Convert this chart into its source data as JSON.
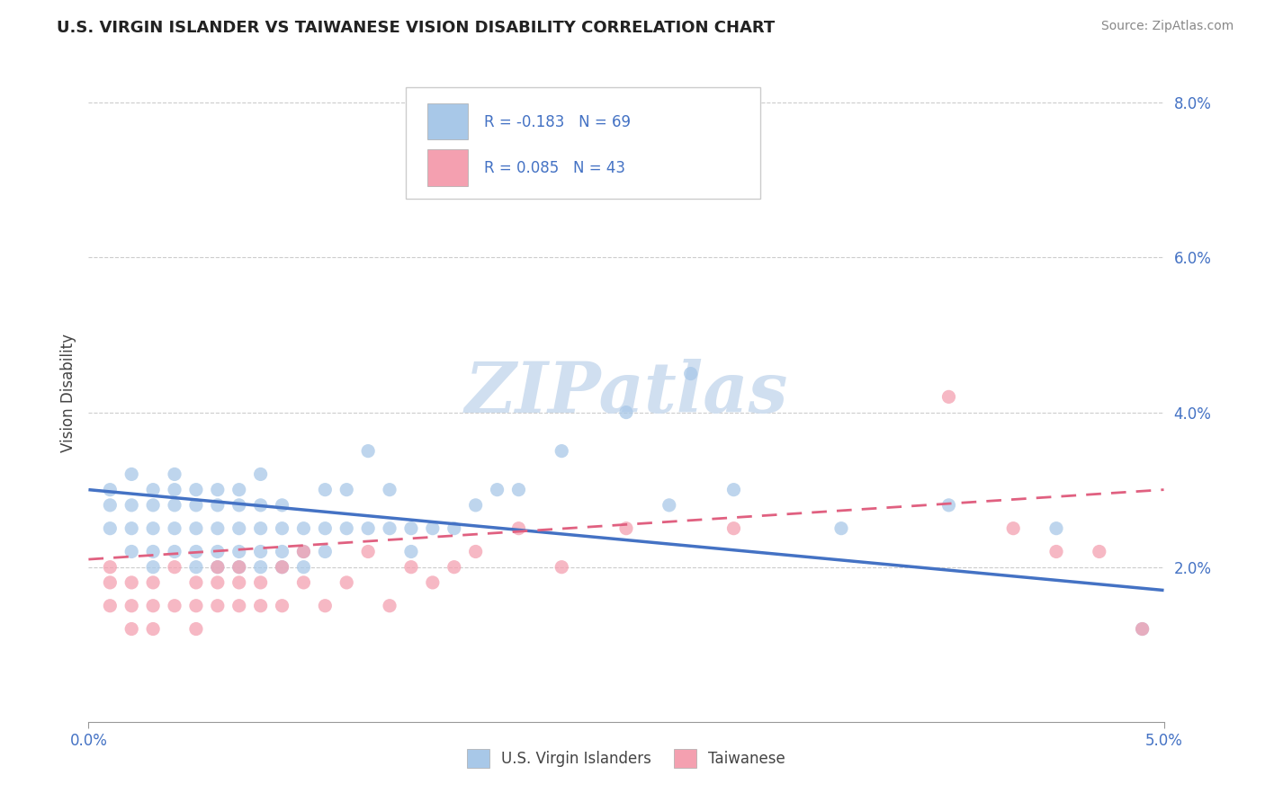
{
  "title": "U.S. VIRGIN ISLANDER VS TAIWANESE VISION DISABILITY CORRELATION CHART",
  "source": "Source: ZipAtlas.com",
  "ylabel": "Vision Disability",
  "xmin": 0.0,
  "xmax": 0.05,
  "ymin": 0.0,
  "ymax": 0.085,
  "yticks": [
    0.02,
    0.04,
    0.06,
    0.08
  ],
  "ytick_labels": [
    "2.0%",
    "4.0%",
    "6.0%",
    "8.0%"
  ],
  "xticks": [
    0.0,
    0.05
  ],
  "xtick_labels": [
    "0.0%",
    "5.0%"
  ],
  "legend_r1": "R = -0.183",
  "legend_n1": "N = 69",
  "legend_r2": "R = 0.085",
  "legend_n2": "N = 43",
  "color_blue": "#a8c8e8",
  "color_blue_line": "#4472c4",
  "color_pink": "#f4a0b0",
  "color_pink_line": "#e06080",
  "color_text_blue": "#4472c4",
  "watermark_color": "#d0dff0",
  "background": "#ffffff",
  "grid_color": "#cccccc",
  "blue_line_start_y": 0.03,
  "blue_line_end_y": 0.017,
  "pink_line_start_y": 0.021,
  "pink_line_end_y": 0.03,
  "blue_scatter_x": [
    0.001,
    0.001,
    0.001,
    0.002,
    0.002,
    0.002,
    0.002,
    0.003,
    0.003,
    0.003,
    0.003,
    0.003,
    0.004,
    0.004,
    0.004,
    0.004,
    0.004,
    0.005,
    0.005,
    0.005,
    0.005,
    0.005,
    0.006,
    0.006,
    0.006,
    0.006,
    0.006,
    0.007,
    0.007,
    0.007,
    0.007,
    0.007,
    0.008,
    0.008,
    0.008,
    0.008,
    0.008,
    0.009,
    0.009,
    0.009,
    0.009,
    0.01,
    0.01,
    0.01,
    0.011,
    0.011,
    0.011,
    0.012,
    0.012,
    0.013,
    0.013,
    0.014,
    0.014,
    0.015,
    0.015,
    0.016,
    0.017,
    0.018,
    0.019,
    0.02,
    0.022,
    0.025,
    0.027,
    0.028,
    0.03,
    0.035,
    0.04,
    0.045,
    0.049
  ],
  "blue_scatter_y": [
    0.025,
    0.028,
    0.03,
    0.022,
    0.025,
    0.028,
    0.032,
    0.02,
    0.022,
    0.025,
    0.028,
    0.03,
    0.022,
    0.025,
    0.028,
    0.03,
    0.032,
    0.02,
    0.022,
    0.025,
    0.028,
    0.03,
    0.02,
    0.022,
    0.025,
    0.028,
    0.03,
    0.02,
    0.022,
    0.025,
    0.028,
    0.03,
    0.02,
    0.022,
    0.025,
    0.028,
    0.032,
    0.02,
    0.022,
    0.025,
    0.028,
    0.02,
    0.022,
    0.025,
    0.022,
    0.025,
    0.03,
    0.025,
    0.03,
    0.025,
    0.035,
    0.025,
    0.03,
    0.022,
    0.025,
    0.025,
    0.025,
    0.028,
    0.03,
    0.03,
    0.035,
    0.04,
    0.028,
    0.045,
    0.03,
    0.025,
    0.028,
    0.025,
    0.012
  ],
  "pink_scatter_x": [
    0.001,
    0.001,
    0.001,
    0.002,
    0.002,
    0.002,
    0.003,
    0.003,
    0.003,
    0.004,
    0.004,
    0.005,
    0.005,
    0.005,
    0.006,
    0.006,
    0.006,
    0.007,
    0.007,
    0.007,
    0.008,
    0.008,
    0.009,
    0.009,
    0.01,
    0.01,
    0.011,
    0.012,
    0.013,
    0.014,
    0.015,
    0.016,
    0.017,
    0.018,
    0.02,
    0.022,
    0.025,
    0.03,
    0.04,
    0.043,
    0.045,
    0.047,
    0.049
  ],
  "pink_scatter_y": [
    0.02,
    0.018,
    0.015,
    0.018,
    0.015,
    0.012,
    0.018,
    0.015,
    0.012,
    0.02,
    0.015,
    0.018,
    0.015,
    0.012,
    0.02,
    0.018,
    0.015,
    0.02,
    0.015,
    0.018,
    0.018,
    0.015,
    0.02,
    0.015,
    0.018,
    0.022,
    0.015,
    0.018,
    0.022,
    0.015,
    0.02,
    0.018,
    0.02,
    0.022,
    0.025,
    0.02,
    0.025,
    0.025,
    0.042,
    0.025,
    0.022,
    0.022,
    0.012
  ]
}
